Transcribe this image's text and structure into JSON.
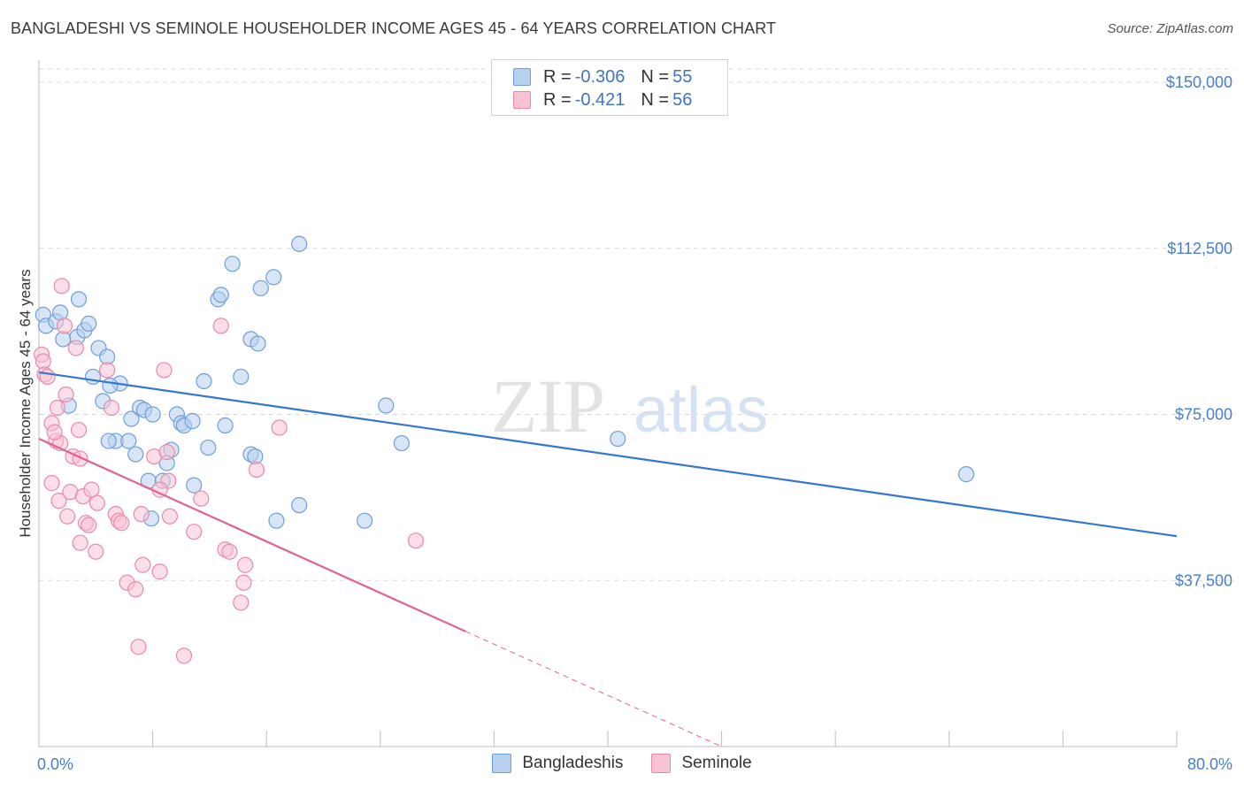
{
  "title": "BANGLADESHI VS SEMINOLE HOUSEHOLDER INCOME AGES 45 - 64 YEARS CORRELATION CHART",
  "source": "Source: ZipAtlas.com",
  "watermark": {
    "zip": "ZIP",
    "atlas": "atlas"
  },
  "legend": {
    "rows": [
      {
        "r_label": "R = ",
        "r_value": "-0.306",
        "n_label": "N = ",
        "n_value": "55"
      },
      {
        "r_label": "R = ",
        "r_value": "-0.421",
        "n_label": "N = ",
        "n_value": "56"
      }
    ]
  },
  "bottom_legend": {
    "series1": "Bangladeshis",
    "series2": "Seminole"
  },
  "colors": {
    "blue_fill": "#b7d0f0",
    "blue_stroke": "#6f9fd8",
    "blue_line": "#3575d3",
    "pink_fill": "#f7c3d3",
    "pink_stroke": "#e98aa8",
    "pink_line": "#e06292",
    "grid": "#d8d8d8",
    "label": "#4a7ec7"
  },
  "chart_data": {
    "type": "scatter",
    "ylabel": "Householder Income Ages 45 - 64 years",
    "x_tick_labels": [
      "0.0%",
      "80.0%"
    ],
    "y_tick_labels": [
      "$37,500",
      "$75,000",
      "$112,500",
      "$150,000"
    ],
    "y_ticks": [
      37500,
      75000,
      112500,
      150000
    ],
    "xlim": [
      0,
      80
    ],
    "ylim": [
      0,
      155000
    ],
    "grid": true,
    "series": [
      {
        "name": "Bangladeshis",
        "r": -0.306,
        "n": 55,
        "trend": {
          "x0": 0,
          "y0": 84500,
          "x1": 80,
          "y1": 47500
        },
        "points": [
          [
            0.3,
            97500
          ],
          [
            0.5,
            95000
          ],
          [
            1.2,
            96000
          ],
          [
            1.5,
            98000
          ],
          [
            2.8,
            101000
          ],
          [
            1.7,
            92000
          ],
          [
            2.7,
            92500
          ],
          [
            3.2,
            94000
          ],
          [
            3.5,
            95500
          ],
          [
            4.2,
            90000
          ],
          [
            4.8,
            88000
          ],
          [
            3.8,
            83500
          ],
          [
            5.7,
            82000
          ],
          [
            5.0,
            81500
          ],
          [
            4.5,
            78000
          ],
          [
            2.1,
            77000
          ],
          [
            6.5,
            74000
          ],
          [
            7.1,
            76500
          ],
          [
            7.4,
            76000
          ],
          [
            8.0,
            75000
          ],
          [
            9.7,
            75000
          ],
          [
            10.0,
            73000
          ],
          [
            10.2,
            72500
          ],
          [
            10.8,
            73500
          ],
          [
            11.6,
            82500
          ],
          [
            11.9,
            67500
          ],
          [
            13.1,
            72500
          ],
          [
            13.6,
            109000
          ],
          [
            12.6,
            101000
          ],
          [
            12.8,
            102000
          ],
          [
            14.2,
            83500
          ],
          [
            14.9,
            92000
          ],
          [
            15.4,
            91000
          ],
          [
            15.6,
            103500
          ],
          [
            16.5,
            106000
          ],
          [
            18.3,
            113500
          ],
          [
            5.4,
            69000
          ],
          [
            6.3,
            69000
          ],
          [
            6.8,
            66000
          ],
          [
            9.3,
            67000
          ],
          [
            9.0,
            64000
          ],
          [
            7.7,
            60000
          ],
          [
            8.7,
            60000
          ],
          [
            10.9,
            59000
          ],
          [
            7.9,
            51500
          ],
          [
            14.9,
            66000
          ],
          [
            15.2,
            65500
          ],
          [
            16.7,
            51000
          ],
          [
            18.3,
            54500
          ],
          [
            22.9,
            51000
          ],
          [
            24.4,
            77000
          ],
          [
            25.5,
            68500
          ],
          [
            40.7,
            69500
          ],
          [
            65.2,
            61500
          ],
          [
            4.9,
            69000
          ]
        ]
      },
      {
        "name": "Seminole",
        "r": -0.421,
        "n": 56,
        "trend": {
          "x0": 0,
          "y0": 69500,
          "x1": 30,
          "y1": 26000,
          "dash_x1": 48,
          "dash_y1": 0
        },
        "points": [
          [
            0.2,
            88500
          ],
          [
            0.3,
            87000
          ],
          [
            0.4,
            84000
          ],
          [
            0.6,
            83500
          ],
          [
            1.6,
            104000
          ],
          [
            1.8,
            95000
          ],
          [
            2.6,
            90000
          ],
          [
            2.8,
            71500
          ],
          [
            1.9,
            79500
          ],
          [
            1.3,
            76500
          ],
          [
            0.9,
            73000
          ],
          [
            1.2,
            69000
          ],
          [
            1.5,
            68500
          ],
          [
            2.4,
            65500
          ],
          [
            2.9,
            65000
          ],
          [
            0.9,
            59500
          ],
          [
            1.4,
            55500
          ],
          [
            2.0,
            52000
          ],
          [
            2.2,
            57500
          ],
          [
            3.1,
            56500
          ],
          [
            3.7,
            58000
          ],
          [
            4.1,
            55000
          ],
          [
            3.3,
            50500
          ],
          [
            3.5,
            50000
          ],
          [
            2.9,
            46000
          ],
          [
            4.0,
            44000
          ],
          [
            4.8,
            85000
          ],
          [
            5.1,
            76500
          ],
          [
            5.4,
            52500
          ],
          [
            5.6,
            51000
          ],
          [
            5.8,
            50500
          ],
          [
            7.2,
            52500
          ],
          [
            6.2,
            37000
          ],
          [
            6.8,
            35500
          ],
          [
            7.3,
            41000
          ],
          [
            8.5,
            39500
          ],
          [
            8.8,
            85000
          ],
          [
            8.1,
            65500
          ],
          [
            9.0,
            66500
          ],
          [
            9.1,
            60000
          ],
          [
            9.2,
            52000
          ],
          [
            10.9,
            48500
          ],
          [
            11.4,
            56000
          ],
          [
            12.8,
            95000
          ],
          [
            13.1,
            44500
          ],
          [
            13.4,
            44000
          ],
          [
            14.5,
            41000
          ],
          [
            14.4,
            37000
          ],
          [
            14.2,
            32500
          ],
          [
            15.3,
            62500
          ],
          [
            16.9,
            72000
          ],
          [
            26.5,
            46500
          ],
          [
            7.0,
            22500
          ],
          [
            10.2,
            20500
          ],
          [
            8.5,
            58000
          ],
          [
            1.1,
            71000
          ]
        ]
      }
    ]
  }
}
